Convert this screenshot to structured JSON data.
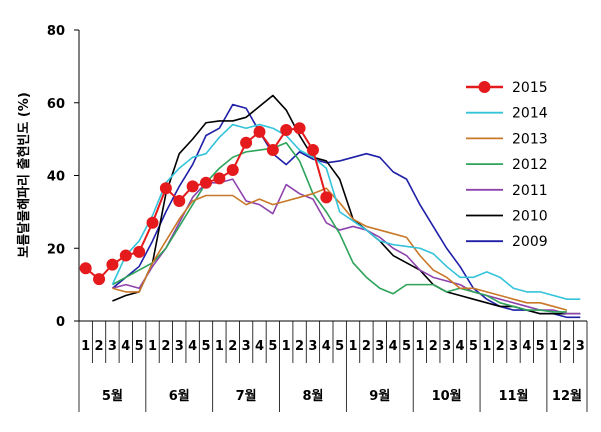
{
  "chart_data": {
    "type": "line",
    "title": "",
    "xlabel": "",
    "ylabel": "보름달물해파리 출현빈도 (%)",
    "ylim": [
      0,
      80
    ],
    "yticks": [
      0,
      20,
      40,
      60,
      80
    ],
    "grid": false,
    "legend_position": "right",
    "x_week_labels": [
      "1",
      "2",
      "3",
      "4",
      "5",
      "1",
      "2",
      "3",
      "4",
      "5",
      "1",
      "2",
      "3",
      "4",
      "5",
      "1",
      "2",
      "3",
      "4",
      "5",
      "1",
      "2",
      "3",
      "4",
      "5",
      "1",
      "2",
      "3",
      "4",
      "5",
      "1",
      "2",
      "3",
      "4",
      "5",
      "1",
      "2",
      "3"
    ],
    "months": [
      {
        "label": "5월",
        "start": 0,
        "end": 4
      },
      {
        "label": "6월",
        "start": 5,
        "end": 9
      },
      {
        "label": "7월",
        "start": 10,
        "end": 14
      },
      {
        "label": "8월",
        "start": 15,
        "end": 19
      },
      {
        "label": "9월",
        "start": 20,
        "end": 24
      },
      {
        "label": "10월",
        "start": 25,
        "end": 29
      },
      {
        "label": "11월",
        "start": 30,
        "end": 34
      },
      {
        "label": "12월",
        "start": 35,
        "end": 37
      }
    ],
    "series": [
      {
        "name": "2015",
        "color": "#e41a1c",
        "markers": true,
        "start": 0,
        "values": [
          14.5,
          11.5,
          15.5,
          18,
          19,
          27,
          36.5,
          33,
          37,
          38,
          39.2,
          41.5,
          49,
          52,
          47,
          52.5,
          53,
          47,
          34
        ]
      },
      {
        "name": "2014",
        "color": "#33c3da",
        "markers": false,
        "start": 2,
        "values": [
          10,
          18,
          22,
          29,
          38,
          42,
          45,
          46,
          50.5,
          54,
          53,
          54,
          53,
          51,
          47,
          45,
          42,
          30,
          27.5,
          25,
          22,
          21,
          20.5,
          20,
          18.5,
          15,
          12,
          12,
          13.5,
          12,
          9,
          8,
          8,
          7,
          6,
          6
        ]
      },
      {
        "name": "2013",
        "color": "#c87828",
        "markers": false,
        "start": 2,
        "values": [
          9,
          8,
          8,
          16,
          22,
          28,
          33,
          34.5,
          34.5,
          34.5,
          32,
          33.5,
          32,
          33,
          34,
          35,
          36.5,
          32.5,
          28,
          26,
          25,
          24,
          23,
          18,
          14,
          12,
          9,
          9,
          8,
          7,
          6,
          5,
          5,
          4,
          3
        ]
      },
      {
        "name": "2012",
        "color": "#2ea35a",
        "markers": false,
        "start": 2,
        "values": [
          10,
          12,
          14,
          16,
          20,
          26,
          32,
          38,
          42,
          45,
          46.5,
          47,
          47.5,
          49,
          44,
          35,
          30,
          24,
          16,
          12,
          9,
          7.5,
          10,
          10,
          10,
          8,
          9,
          8,
          7,
          5,
          4,
          3,
          3,
          2.5,
          2.5
        ]
      },
      {
        "name": "2011",
        "color": "#8e44ad",
        "markers": false,
        "start": 2,
        "values": [
          9,
          10,
          9,
          15,
          20,
          27,
          34,
          38,
          38,
          39,
          33,
          32,
          29.5,
          37.5,
          35,
          33.5,
          27,
          25,
          26,
          25,
          23,
          20,
          18,
          14,
          12,
          11,
          10,
          8,
          7,
          6,
          5,
          4,
          3,
          3,
          2,
          2
        ]
      },
      {
        "name": "2010",
        "color": "#000000",
        "markers": false,
        "start": 2,
        "values": [
          5.5,
          7,
          8,
          16,
          35,
          46,
          50,
          54.5,
          55,
          55,
          56,
          59,
          62,
          58,
          51,
          45,
          44,
          39,
          28,
          25,
          22,
          18,
          16,
          14,
          10,
          8,
          7,
          6,
          5,
          4,
          4,
          3,
          2,
          2,
          2,
          2
        ]
      },
      {
        "name": "2009",
        "color": "#1f1fa8",
        "markers": false,
        "start": 2,
        "values": [
          9,
          12,
          15,
          22,
          30,
          37,
          43,
          51,
          53,
          59.5,
          58.5,
          52,
          46,
          43,
          46.5,
          44.5,
          43.5,
          44,
          45,
          46,
          45,
          41,
          39,
          32,
          26,
          20,
          15,
          9,
          6,
          4,
          3,
          3,
          2,
          2,
          1,
          1
        ]
      }
    ]
  }
}
